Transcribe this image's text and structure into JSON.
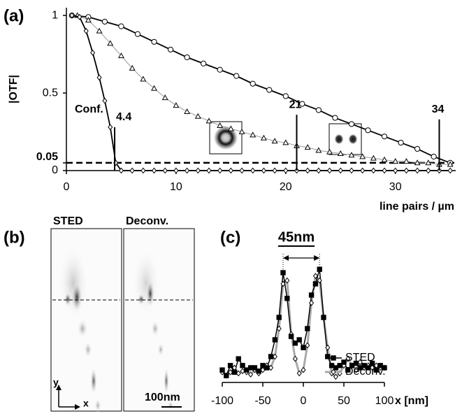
{
  "chart_data": [
    {
      "type": "line",
      "panel": "(a)",
      "xlabel": "line pairs / µm",
      "ylabel": "|OTF|",
      "xlim": [
        0,
        35.5
      ],
      "ylim": [
        0,
        1.05
      ],
      "xticks": [
        0,
        10,
        20,
        30
      ],
      "yticks": [
        0,
        0.05,
        0.5,
        1
      ],
      "hline": 0.05,
      "annotation": "Conf.",
      "cutoffs": [
        4.4,
        21,
        34
      ],
      "series": [
        {
          "marker": "circle",
          "color": "#000000",
          "x": [
            0.5,
            2,
            3.5,
            5,
            6.5,
            8,
            9.5,
            11,
            12.5,
            14,
            15.5,
            17,
            18.5,
            20,
            21.5,
            23,
            24.5,
            26,
            27.5,
            29,
            30.5,
            32,
            33.5,
            35
          ],
          "values": [
            1.0,
            0.99,
            0.96,
            0.93,
            0.88,
            0.83,
            0.78,
            0.73,
            0.69,
            0.65,
            0.61,
            0.56,
            0.52,
            0.48,
            0.43,
            0.39,
            0.34,
            0.3,
            0.26,
            0.22,
            0.18,
            0.14,
            0.09,
            0.05
          ]
        },
        {
          "marker": "triangle",
          "color": "#999999",
          "x": [
            1,
            2,
            3,
            4,
            5,
            6,
            7,
            8,
            9,
            10,
            11,
            12,
            13,
            14,
            15,
            16,
            17,
            18,
            19,
            20,
            21,
            22,
            23,
            24,
            25,
            26,
            27,
            28,
            29,
            30,
            31,
            32,
            33,
            34,
            35
          ],
          "values": [
            1.0,
            0.97,
            0.9,
            0.82,
            0.74,
            0.66,
            0.59,
            0.53,
            0.47,
            0.42,
            0.38,
            0.35,
            0.32,
            0.29,
            0.27,
            0.25,
            0.23,
            0.21,
            0.19,
            0.18,
            0.16,
            0.15,
            0.13,
            0.12,
            0.11,
            0.1,
            0.09,
            0.08,
            0.07,
            0.06,
            0.06,
            0.05,
            0.05,
            0.04,
            0.04
          ]
        },
        {
          "marker": "diamond",
          "color": "#000000",
          "x": [
            0.5,
            1.2,
            1.8,
            2.4,
            3,
            3.5,
            4,
            4.5,
            5,
            6,
            7,
            8,
            9,
            10,
            11,
            12,
            13,
            14,
            15,
            16,
            17,
            18,
            19,
            20,
            21,
            22,
            23,
            24,
            25,
            26,
            27,
            28,
            29,
            30,
            31,
            32,
            33,
            34,
            35
          ],
          "values": [
            1.0,
            0.99,
            0.9,
            0.76,
            0.6,
            0.45,
            0.28,
            0.05,
            0,
            0,
            0,
            0,
            0,
            0,
            0,
            0,
            0,
            0,
            0,
            0,
            0,
            0,
            0,
            0,
            0,
            0,
            0,
            0,
            0,
            0,
            0,
            0,
            0,
            0,
            0,
            0,
            0,
            0,
            0
          ]
        }
      ]
    },
    {
      "type": "image",
      "panel": "(b)",
      "labels": [
        "STED",
        "Deconv."
      ],
      "scale_bar": "100nm",
      "axes": [
        "y",
        "x"
      ]
    },
    {
      "type": "line",
      "panel": "(c)",
      "title": "45nm",
      "xlabel": "x [nm]",
      "xlim": [
        -100,
        100
      ],
      "ylim": [
        0,
        1
      ],
      "xticks": [
        -100,
        -50,
        0,
        50,
        100
      ],
      "legend": "right",
      "x": [
        -100,
        -95,
        -90,
        -85,
        -80,
        -75,
        -70,
        -65,
        -60,
        -55,
        -50,
        -45,
        -40,
        -35,
        -30,
        -25,
        -20,
        -15,
        -10,
        -5,
        0,
        5,
        10,
        15,
        20,
        25,
        30,
        35,
        40,
        45,
        50,
        55,
        60,
        65,
        70,
        75,
        80,
        85,
        90,
        95,
        100
      ],
      "series": [
        {
          "name": "STED",
          "marker": "square",
          "color": "#000000",
          "values": [
            0.08,
            0.03,
            0.12,
            0.06,
            0.18,
            0.12,
            0.08,
            0.1,
            0.1,
            0.07,
            0.12,
            0.1,
            0.2,
            0.35,
            0.55,
            0.95,
            0.72,
            0.38,
            0.32,
            0.35,
            0.28,
            0.45,
            0.75,
            0.85,
            0.98,
            0.55,
            0.2,
            0.12,
            0.1,
            0.12,
            0.15,
            0.08,
            0.12,
            0.14,
            0.1,
            0.12,
            0.1,
            0.14,
            0.08,
            0.12,
            0.1
          ]
        },
        {
          "name": "Deconv.",
          "marker": "diamond",
          "color": "#aaaaaa",
          "values": [
            0.06,
            0.03,
            0.06,
            0.1,
            0.05,
            0.07,
            0.06,
            0.04,
            0.08,
            0.05,
            0.08,
            0.12,
            0.1,
            0.2,
            0.45,
            0.85,
            0.88,
            0.4,
            0.18,
            0.05,
            0.08,
            0.3,
            0.68,
            0.92,
            0.88,
            0.55,
            0.28,
            0.05,
            0.02,
            0.05,
            0.12,
            0.18,
            0.12,
            0.08,
            0.15,
            0.1,
            0.12,
            0.1,
            0.12,
            0.1,
            0.1
          ]
        }
      ]
    }
  ]
}
